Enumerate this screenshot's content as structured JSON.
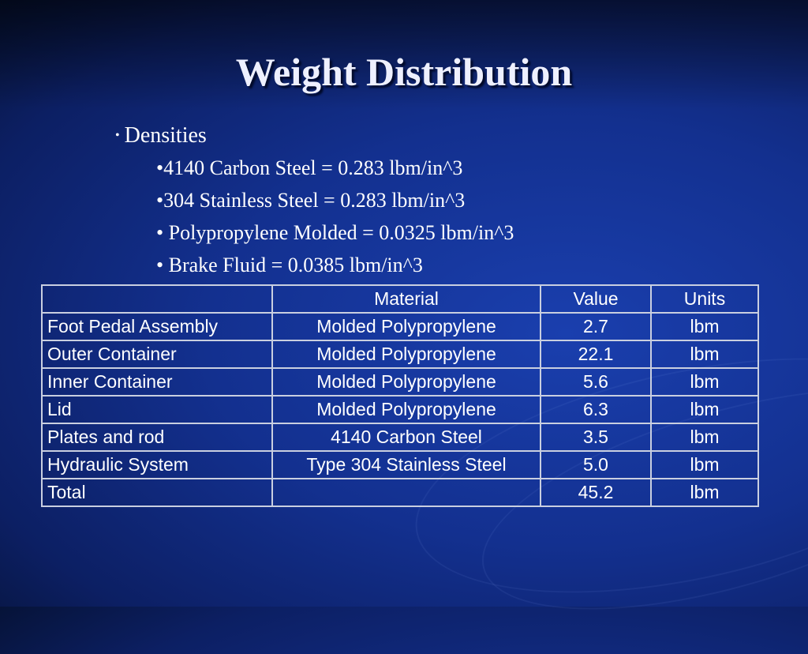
{
  "slide": {
    "title": "Weight Distribution",
    "bullet": "Densities",
    "sub_bullets": [
      "•4140 Carbon Steel = 0.283 lbm/in^3",
      "•304 Stainless Steel = 0.283 lbm/in^3",
      "• Polypropylene Molded = 0.0325 lbm/in^3",
      "• Brake Fluid = 0.0385 lbm/in^3"
    ]
  },
  "table": {
    "headers": [
      "",
      "Material",
      "Value",
      "Units"
    ],
    "rows": [
      [
        "Foot Pedal Assembly",
        "Molded Polypropylene",
        "2.7",
        "lbm"
      ],
      [
        "Outer Container",
        "Molded Polypropylene",
        "22.1",
        "lbm"
      ],
      [
        "Inner Container",
        "Molded Polypropylene",
        "5.6",
        "lbm"
      ],
      [
        "Lid",
        "Molded Polypropylene",
        "6.3",
        "lbm"
      ],
      [
        "Plates and rod",
        "4140 Carbon Steel",
        "3.5",
        "lbm"
      ],
      [
        "Hydraulic System",
        "Type 304 Stainless Steel",
        "5.0",
        "lbm"
      ],
      [
        "Total",
        "",
        "45.2",
        "lbm"
      ]
    ]
  }
}
